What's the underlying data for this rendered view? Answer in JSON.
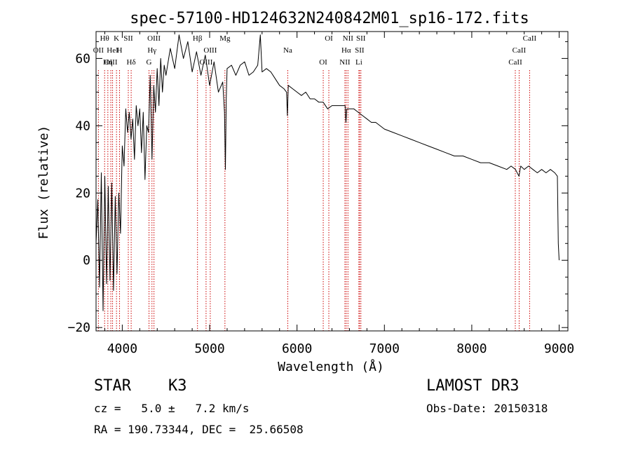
{
  "chart_data": {
    "type": "line",
    "title": "spec-57100-HD124632N240842M01_sp16-172.fits",
    "xlabel": "Wavelength (Å)",
    "ylabel": "Flux (relative)",
    "xlim": [
      3700,
      9100
    ],
    "ylim": [
      -21,
      68
    ],
    "xticks": [
      4000,
      5000,
      6000,
      7000,
      8000,
      9000
    ],
    "xtick_labels": [
      "4000",
      "5000",
      "6000",
      "7000",
      "8000",
      "9000"
    ],
    "yticks": [
      -20,
      0,
      20,
      40,
      60
    ],
    "ytick_labels": [
      "−20",
      "0",
      "20",
      "40",
      "60"
    ],
    "grid": false,
    "series": [
      {
        "name": "spectrum",
        "x": [
          3700,
          3720,
          3740,
          3760,
          3780,
          3800,
          3820,
          3840,
          3860,
          3880,
          3900,
          3920,
          3940,
          3960,
          3980,
          4000,
          4020,
          4040,
          4060,
          4080,
          4100,
          4120,
          4140,
          4160,
          4180,
          4200,
          4220,
          4240,
          4260,
          4280,
          4300,
          4320,
          4340,
          4360,
          4380,
          4400,
          4420,
          4440,
          4460,
          4480,
          4500,
          4550,
          4600,
          4650,
          4700,
          4750,
          4800,
          4850,
          4900,
          4950,
          5000,
          5050,
          5100,
          5150,
          5170,
          5180,
          5190,
          5200,
          5250,
          5300,
          5350,
          5400,
          5450,
          5500,
          5550,
          5580,
          5600,
          5650,
          5700,
          5750,
          5800,
          5850,
          5880,
          5890,
          5900,
          5950,
          6000,
          6050,
          6100,
          6150,
          6200,
          6250,
          6300,
          6350,
          6400,
          6450,
          6500,
          6550,
          6560,
          6570,
          6600,
          6650,
          6700,
          6750,
          6800,
          6850,
          6900,
          7000,
          7100,
          7200,
          7300,
          7400,
          7500,
          7600,
          7700,
          7800,
          7900,
          8000,
          8100,
          8200,
          8300,
          8400,
          8450,
          8500,
          8540,
          8560,
          8600,
          8650,
          8700,
          8750,
          8800,
          8850,
          8900,
          8950,
          8980,
          8990,
          9000
        ],
        "values": [
          5,
          18,
          -8,
          26,
          -15,
          25,
          -7,
          22,
          -6,
          23,
          -9,
          19,
          -4,
          20,
          8,
          34,
          28,
          45,
          38,
          44,
          36,
          42,
          30,
          46,
          40,
          45,
          32,
          44,
          24,
          40,
          38,
          55,
          30,
          52,
          44,
          57,
          46,
          60,
          50,
          58,
          55,
          63,
          57,
          67,
          60,
          65,
          56,
          62,
          55,
          61,
          52,
          59,
          50,
          53,
          44,
          27,
          48,
          57,
          58,
          55,
          58,
          59,
          55,
          56,
          58,
          67,
          56,
          57,
          56,
          54,
          52,
          51,
          50,
          43,
          52,
          51,
          50,
          49,
          50,
          48,
          48,
          47,
          47,
          45,
          46,
          46,
          46,
          46,
          41,
          45,
          45,
          45,
          44,
          43,
          42,
          41,
          41,
          39,
          38,
          37,
          36,
          35,
          34,
          33,
          32,
          31,
          31,
          30,
          29,
          29,
          28,
          27,
          28,
          27,
          25,
          28,
          27,
          28,
          27,
          26,
          27,
          26,
          27,
          26,
          25,
          5,
          0
        ]
      }
    ],
    "lines": [
      {
        "label": "Hθ",
        "x": 3798
      },
      {
        "label": "OII",
        "x": 3727
      },
      {
        "label": "OIII",
        "x": 3869
      },
      {
        "label": "K",
        "x": 3934
      },
      {
        "label": "HeI",
        "x": 3889
      },
      {
        "label": "Hη",
        "x": 3835
      },
      {
        "label": "SII",
        "x": 4069
      },
      {
        "label": "H",
        "x": 3969
      },
      {
        "label": "Hδ",
        "x": 4102
      },
      {
        "label": "OIII",
        "x": 4363
      },
      {
        "label": "Hγ",
        "x": 4340
      },
      {
        "label": "G",
        "x": 4306
      },
      {
        "label": "Hβ",
        "x": 4861
      },
      {
        "label": "OIII",
        "x": 5007
      },
      {
        "label": "OIII",
        "x": 4959
      },
      {
        "label": "Mg",
        "x": 5175
      },
      {
        "label": "Na",
        "x": 5894
      },
      {
        "label": "OI",
        "x": 6300
      },
      {
        "label": "OI",
        "x": 6364
      },
      {
        "label": "Hα",
        "x": 6563
      },
      {
        "label": "NII",
        "x": 6548
      },
      {
        "label": "NII",
        "x": 6583
      },
      {
        "label": "SII",
        "x": 6716
      },
      {
        "label": "Li",
        "x": 6708
      },
      {
        "label": "SII",
        "x": 6731
      },
      {
        "label": "CaII",
        "x": 8542
      },
      {
        "label": "CaII",
        "x": 8498
      },
      {
        "label": "CaII",
        "x": 8662
      }
    ]
  },
  "info": {
    "object_class": "STAR",
    "subclass": "K3",
    "survey": "LAMOST DR3",
    "redshift": "cz =   5.0 ±   7.2 km/s",
    "obs_date": "Obs-Date: 20150318",
    "coords": "RA = 190.73344, DEC =  25.66508"
  },
  "colors": {
    "axis": "#000000",
    "spectrum": "#000000",
    "line_marker": "#cc0000"
  }
}
